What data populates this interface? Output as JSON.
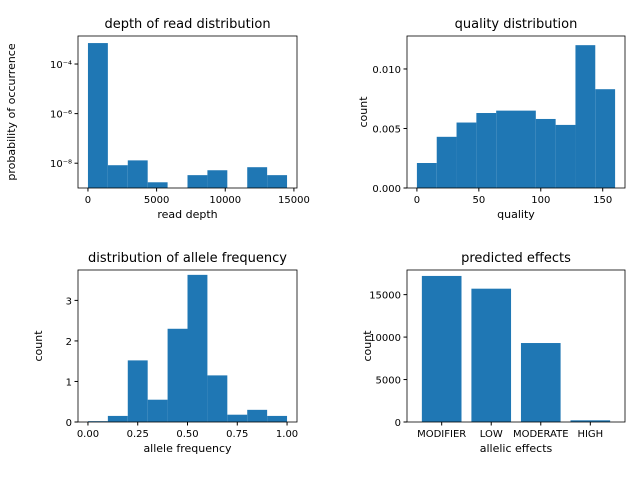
{
  "chart_data": [
    {
      "type": "histogram",
      "title": "depth of read distribution",
      "xlabel": "read depth",
      "ylabel": "probability of occurrence",
      "bins": [
        0,
        1450,
        2900,
        4350,
        5800,
        7250,
        8700,
        10150,
        11600,
        13050,
        14500
      ],
      "values": [
        0.0007,
        8.3e-09,
        1.3e-08,
        1.7e-09,
        0,
        3.3e-09,
        5.2e-09,
        0,
        6.9e-09,
        3.3e-09
      ],
      "color": "#1f77b4",
      "ylog": true,
      "xlim": [
        -725,
        15225
      ],
      "xticks": [
        0,
        5000,
        10000,
        15000
      ],
      "ylim": [
        1e-09,
        0.00135
      ],
      "yticks": [
        {
          "value": 1e-08,
          "label": "10⁻⁸"
        },
        {
          "value": 1e-06,
          "label": "10⁻⁶"
        },
        {
          "value": 0.0001,
          "label": "10⁻⁴"
        }
      ]
    },
    {
      "type": "histogram",
      "title": "quality distribution",
      "xlabel": "quality",
      "ylabel": "count",
      "bins": [
        0,
        16,
        32,
        48,
        64,
        80,
        96,
        112,
        128,
        144,
        160
      ],
      "values": [
        0.0021,
        0.0043,
        0.0055,
        0.0063,
        0.0065,
        0.0065,
        0.0058,
        0.0053,
        0.012,
        0.0083
      ],
      "color": "#1f77b4",
      "xlim": [
        -8,
        168
      ],
      "xticks": [
        0,
        50,
        100,
        150
      ],
      "ylim": [
        0,
        0.01277
      ],
      "yticks": [
        {
          "value": 0,
          "label": "0.000"
        },
        {
          "value": 0.005,
          "label": "0.005"
        },
        {
          "value": 0.01,
          "label": "0.010"
        }
      ]
    },
    {
      "type": "histogram",
      "title": "distribution of allele frequency",
      "xlabel": "allele frequency",
      "ylabel": "count",
      "bins": [
        0,
        0.1,
        0.2,
        0.3,
        0.4,
        0.5,
        0.6,
        0.7,
        0.8,
        0.9,
        1.0
      ],
      "values": [
        0.02,
        0.15,
        1.52,
        0.55,
        2.3,
        3.63,
        1.15,
        0.18,
        0.3,
        0.15
      ],
      "color": "#1f77b4",
      "xlim": [
        -0.05,
        1.05
      ],
      "xticks": [
        {
          "value": 0,
          "label": "0.00"
        },
        {
          "value": 0.25,
          "label": "0.25"
        },
        {
          "value": 0.5,
          "label": "0.50"
        },
        {
          "value": 0.75,
          "label": "0.75"
        },
        {
          "value": 1,
          "label": "1.00"
        }
      ],
      "ylim": [
        0,
        3.75
      ],
      "yticks": [
        0,
        1,
        2,
        3
      ]
    },
    {
      "type": "bar",
      "title": "predicted effects",
      "xlabel": "allelic effects",
      "ylabel": "count",
      "categories": [
        "MODIFIER",
        "LOW",
        "MODERATE",
        "HIGH"
      ],
      "values": [
        17200,
        15700,
        9300,
        200
      ],
      "color": "#1f77b4",
      "ylim": [
        0,
        17900
      ],
      "yticks": [
        0,
        5000,
        10000,
        15000
      ]
    }
  ]
}
